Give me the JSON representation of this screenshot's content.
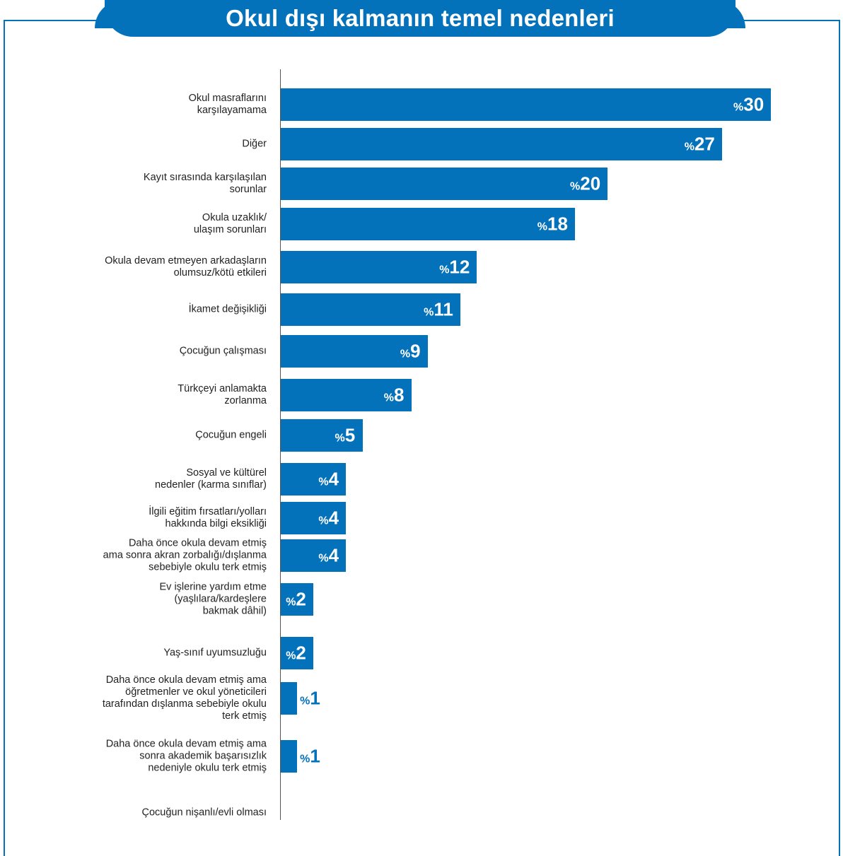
{
  "title": "Okul dışı kalmanın temel nedenleri",
  "colors": {
    "accent": "#0472bb",
    "text": "#222222"
  },
  "chart_data": {
    "type": "bar",
    "orientation": "horizontal",
    "title": "Okul dışı kalmanın temel nedenleri",
    "value_prefix": "%",
    "xlim": [
      0,
      30
    ],
    "categories": [
      "Okul masraflarını\nkarşılayamama",
      "Diğer",
      "Kayıt sırasında karşılaşılan\nsorunlar",
      "Okula uzaklık/\nulaşım sorunları",
      "Okula devam etmeyen arkadaşların\nolumsuz/kötü etkileri",
      "İkamet değişikliği",
      "Çocuğun çalışması",
      "Türkçeyi anlamakta\nzorlanma",
      "Çocuğun engeli",
      "Sosyal ve kültürel\nnedenler (karma sınıflar)",
      "İlgili eğitim fırsatları/yolları\nhakkında bilgi eksikliği",
      "Daha önce okula devam etmiş\nama sonra akran zorbalığı/dışlanma\nsebebiyle okulu terk etmiş",
      "Ev işlerine yardım etme\n(yaşlılara/kardeşlere\nbakmak dâhil)",
      "Yaş-sınıf uyumsuzluğu",
      "Daha önce okula devam etmiş ama\nöğretmenler ve okul yöneticileri\ntarafından dışlanma sebebiyle okulu\nterk etmiş",
      "Daha önce okula devam etmiş ama\nsonra akademik başarısızlık\nnedeniyle okulu terk etmiş",
      "Çocuğun nişanlı/evli olması"
    ],
    "values": [
      30,
      27,
      20,
      18,
      12,
      11,
      9,
      8,
      5,
      4,
      4,
      4,
      2,
      2,
      1,
      1,
      null
    ]
  }
}
